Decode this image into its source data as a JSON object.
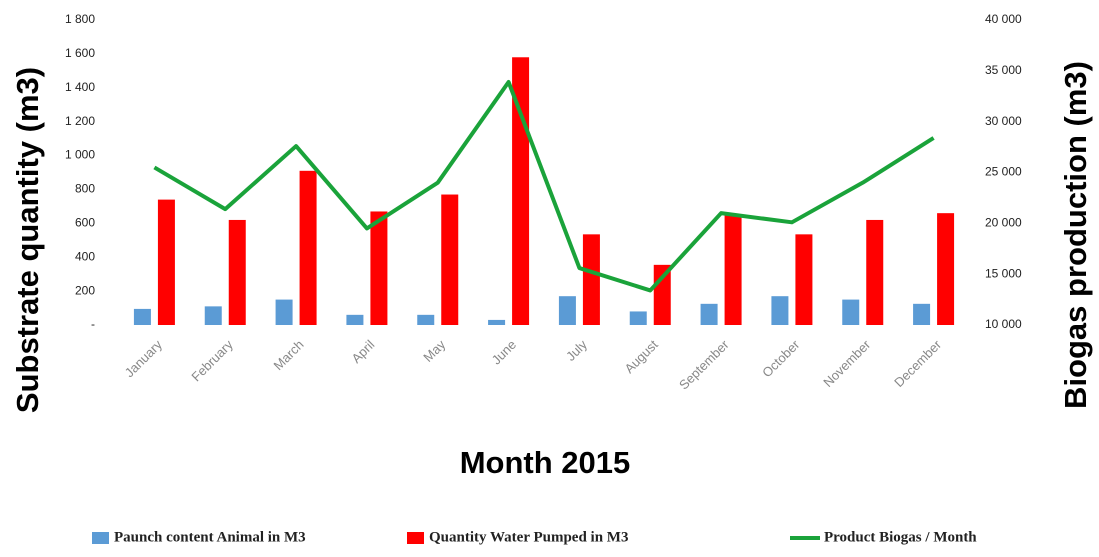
{
  "chart_data": {
    "type": "bar",
    "x_label": "Month 2015",
    "y_label": "Substrate quantity (m3)",
    "y2_label": "Biogas production (m3)",
    "categories": [
      "January",
      "February",
      "March",
      "April",
      "May",
      "June",
      "July",
      "August",
      "September",
      "October",
      "November",
      "December"
    ],
    "series": [
      {
        "name": "Paunch content Animal in M3",
        "type": "bar",
        "color": "#5b9bd5",
        "values": [
          95,
          110,
          150,
          60,
          60,
          30,
          170,
          80,
          125,
          170,
          150,
          125
        ]
      },
      {
        "name": "Quantity Water Pumped in M3",
        "type": "bar",
        "color": "#ff0000",
        "values": [
          740,
          620,
          910,
          670,
          770,
          1580,
          535,
          355,
          650,
          535,
          620,
          660
        ]
      },
      {
        "name": "Product Biogas / Month",
        "type": "line",
        "axis": "y2",
        "color": "#1aa33a",
        "values": [
          25500,
          21400,
          27600,
          19500,
          24000,
          33900,
          15600,
          13400,
          21000,
          20100,
          24000,
          28400
        ]
      }
    ],
    "ylim": [
      0,
      1800
    ],
    "yticks": [
      {
        "value": 0,
        "label": "-"
      },
      200,
      400,
      600,
      800,
      {
        "value": 1000,
        "label": "1 000"
      },
      {
        "value": 1200,
        "label": "1 200"
      },
      {
        "value": 1400,
        "label": "1 400"
      },
      {
        "value": 1600,
        "label": "1 600"
      },
      {
        "value": 1800,
        "label": "1 800"
      }
    ],
    "y2lim": [
      10000,
      40000
    ],
    "y2ticks": [
      {
        "value": 10000,
        "label": "10 000"
      },
      {
        "value": 15000,
        "label": "15 000"
      },
      {
        "value": 20000,
        "label": "20 000"
      },
      {
        "value": 25000,
        "label": "25 000"
      },
      {
        "value": 30000,
        "label": "30 000"
      },
      {
        "value": 35000,
        "label": "35 000"
      },
      {
        "value": 40000,
        "label": "40 000"
      }
    ],
    "grid": false,
    "legend": "bottom"
  }
}
